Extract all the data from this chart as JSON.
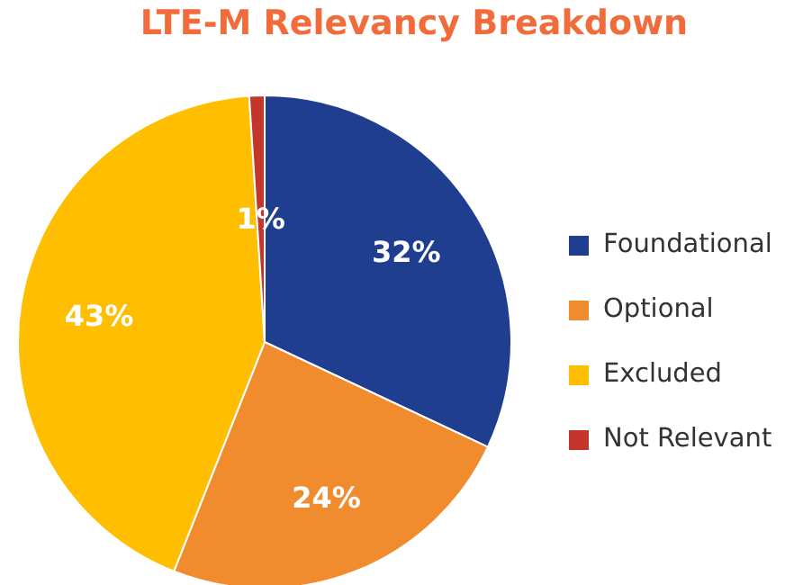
{
  "chart_data": {
    "type": "pie",
    "title": "LTE-M Relevancy Breakdown",
    "categories": [
      "Foundational",
      "Optional",
      "Excluded",
      "Not Relevant"
    ],
    "values": [
      32,
      24,
      43,
      1
    ],
    "colors": [
      "#203e8f",
      "#f08c2e",
      "#ffbf00",
      "#c4352b"
    ],
    "value_labels": [
      "32%",
      "24%",
      "43%",
      "1%"
    ],
    "legend": "right"
  }
}
